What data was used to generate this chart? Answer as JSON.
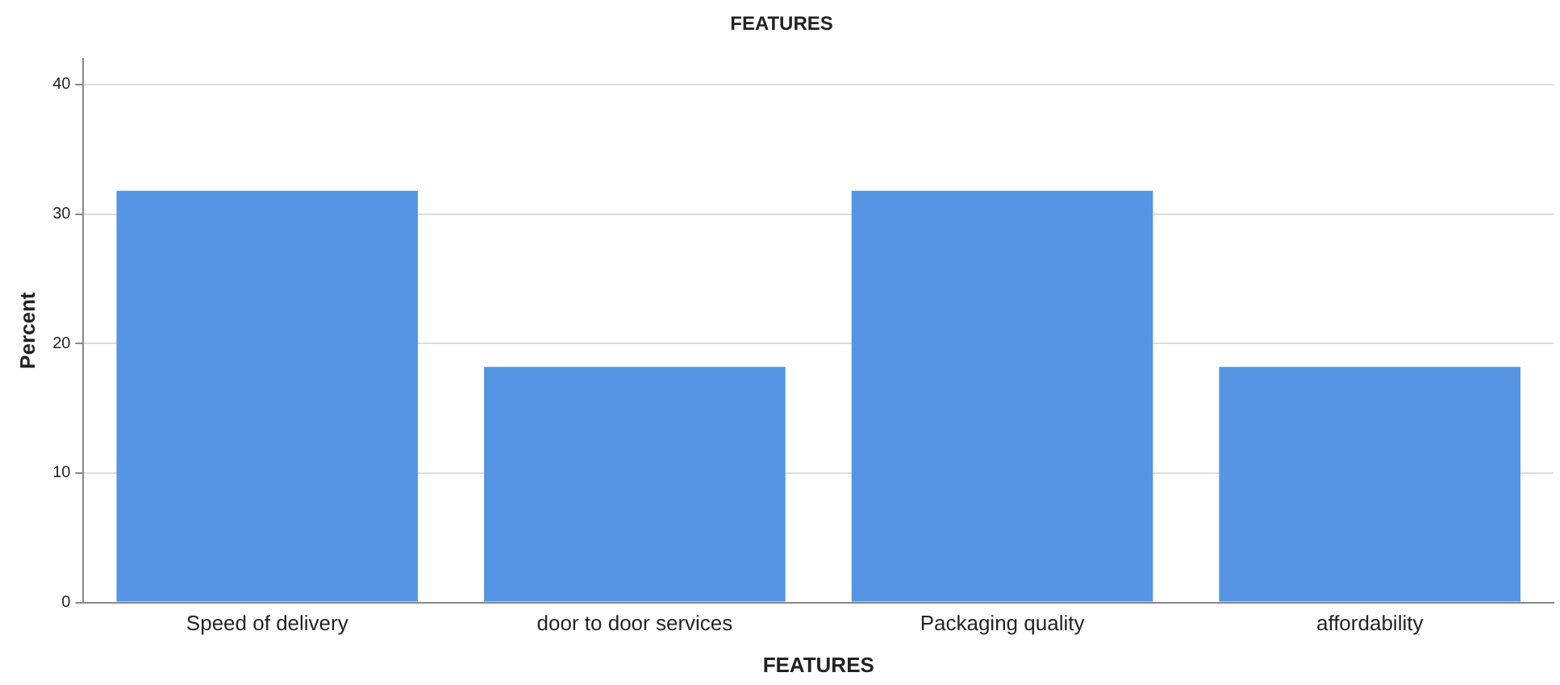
{
  "chart_data": {
    "type": "bar",
    "title": "FEATURES",
    "xlabel": "FEATURES",
    "ylabel": "Percent",
    "categories": [
      "Speed of delivery",
      "door to door services",
      "Packaging quality",
      "affordability"
    ],
    "values": [
      31.8,
      18.2,
      31.8,
      18.2
    ],
    "color": "#5595e3",
    "ylim": [
      0,
      42
    ],
    "yticks": [
      0,
      10,
      20,
      30,
      40
    ],
    "grid": "y",
    "legend": false
  }
}
